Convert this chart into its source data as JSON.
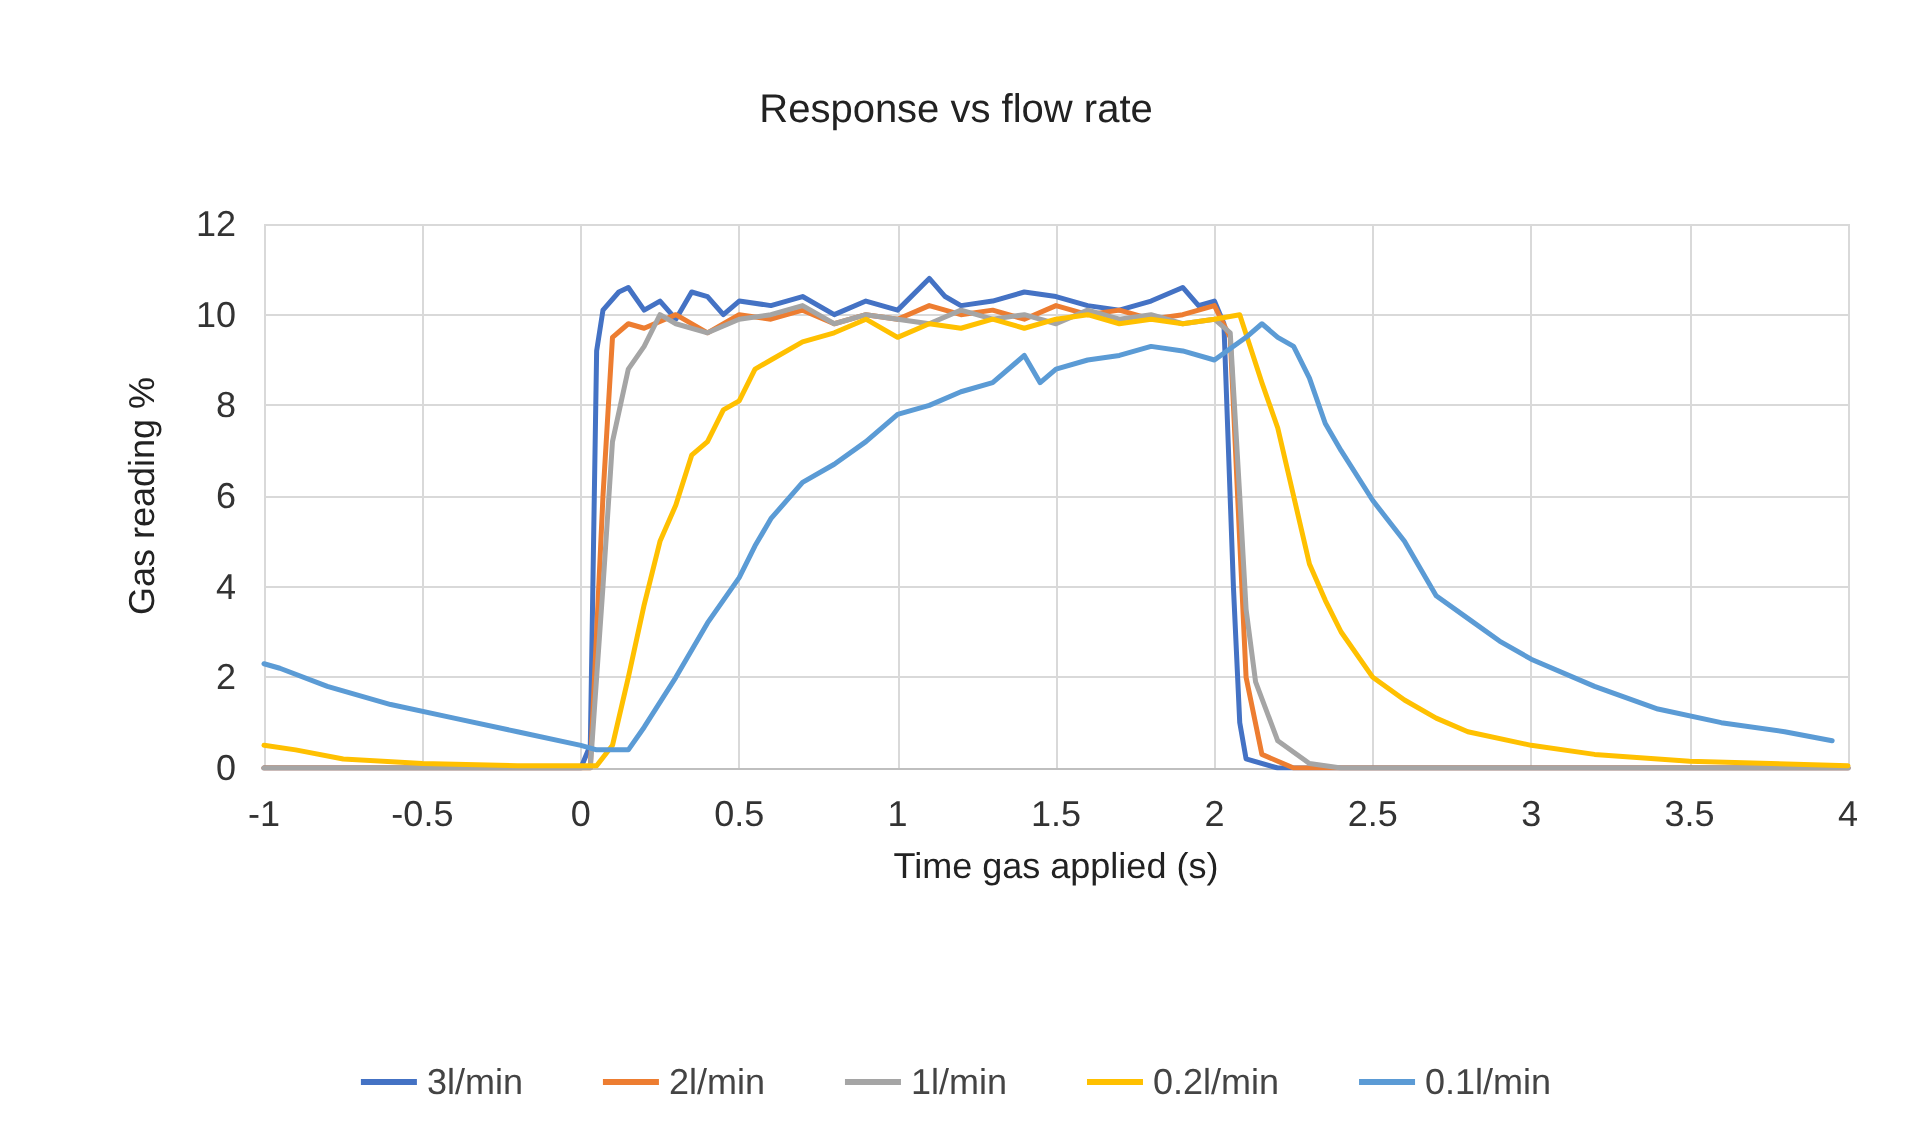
{
  "chart_data": {
    "type": "line",
    "title": "Response vs flow rate",
    "xlabel": "Time gas applied (s)",
    "ylabel": "Gas reading %",
    "xlim": [
      -1,
      4
    ],
    "xticks": [
      -1,
      -0.5,
      0,
      0.5,
      1,
      1.5,
      2,
      2.5,
      3,
      3.5,
      4
    ],
    "ylim": [
      0,
      12
    ],
    "yticks": [
      0,
      2,
      4,
      6,
      8,
      10,
      12
    ],
    "grid": true,
    "legend": "bottom",
    "marker": "none",
    "line_style": "solid",
    "series": [
      {
        "name": "3l/min",
        "color": "#4472c4",
        "x": [
          -1,
          -0.5,
          0,
          0.03,
          0.05,
          0.07,
          0.12,
          0.15,
          0.2,
          0.25,
          0.3,
          0.35,
          0.4,
          0.45,
          0.5,
          0.6,
          0.7,
          0.8,
          0.9,
          1.0,
          1.1,
          1.15,
          1.2,
          1.3,
          1.4,
          1.5,
          1.6,
          1.7,
          1.8,
          1.9,
          1.95,
          2.0,
          2.03,
          2.06,
          2.08,
          2.1,
          2.2,
          3,
          4
        ],
        "values": [
          0,
          0,
          0,
          0.5,
          9.2,
          10.1,
          10.5,
          10.6,
          10.1,
          10.3,
          9.9,
          10.5,
          10.4,
          10.0,
          10.3,
          10.2,
          10.4,
          10.0,
          10.3,
          10.1,
          10.8,
          10.4,
          10.2,
          10.3,
          10.5,
          10.4,
          10.2,
          10.1,
          10.3,
          10.6,
          10.2,
          10.3,
          9.8,
          4,
          1,
          0.2,
          0,
          0,
          0
        ]
      },
      {
        "name": "2l/min",
        "color": "#ed7d31",
        "x": [
          -1,
          0,
          0.03,
          0.07,
          0.1,
          0.15,
          0.2,
          0.3,
          0.4,
          0.5,
          0.6,
          0.7,
          0.8,
          0.9,
          1.0,
          1.1,
          1.2,
          1.3,
          1.4,
          1.5,
          1.6,
          1.7,
          1.8,
          1.9,
          2.0,
          2.05,
          2.08,
          2.1,
          2.15,
          2.25,
          3,
          4
        ],
        "values": [
          0,
          0,
          0,
          6,
          9.5,
          9.8,
          9.7,
          10.0,
          9.6,
          10.0,
          9.9,
          10.1,
          9.8,
          10.0,
          9.9,
          10.2,
          10.0,
          10.1,
          9.9,
          10.2,
          10.0,
          10.1,
          9.9,
          10.0,
          10.2,
          9.5,
          5,
          2,
          0.3,
          0,
          0,
          0
        ]
      },
      {
        "name": "1l/min",
        "color": "#a5a5a5",
        "x": [
          -1,
          0,
          0.03,
          0.07,
          0.1,
          0.15,
          0.2,
          0.25,
          0.3,
          0.4,
          0.5,
          0.6,
          0.7,
          0.8,
          0.9,
          1.0,
          1.1,
          1.2,
          1.3,
          1.4,
          1.5,
          1.6,
          1.7,
          1.8,
          1.9,
          2.0,
          2.05,
          2.08,
          2.1,
          2.13,
          2.2,
          2.3,
          2.4,
          3,
          4
        ],
        "values": [
          0,
          0,
          0,
          4,
          7.2,
          8.8,
          9.3,
          10.0,
          9.8,
          9.6,
          9.9,
          10.0,
          10.2,
          9.8,
          10.0,
          9.9,
          9.8,
          10.1,
          9.9,
          10.0,
          9.8,
          10.1,
          9.9,
          10.0,
          9.8,
          9.9,
          9.6,
          6,
          3.5,
          1.9,
          0.6,
          0.1,
          0,
          0,
          0
        ]
      },
      {
        "name": "0.2l/min",
        "color": "#ffc000",
        "x": [
          -1,
          -0.9,
          -0.75,
          -0.5,
          -0.2,
          0.05,
          0.1,
          0.15,
          0.2,
          0.25,
          0.3,
          0.35,
          0.4,
          0.45,
          0.5,
          0.55,
          0.6,
          0.7,
          0.8,
          0.9,
          1.0,
          1.1,
          1.2,
          1.3,
          1.4,
          1.5,
          1.6,
          1.7,
          1.8,
          1.9,
          2.0,
          2.08,
          2.15,
          2.2,
          2.25,
          2.3,
          2.35,
          2.4,
          2.5,
          2.6,
          2.7,
          2.8,
          3.0,
          3.2,
          3.5,
          4
        ],
        "values": [
          0.5,
          0.4,
          0.2,
          0.1,
          0.05,
          0.05,
          0.5,
          2,
          3.6,
          5,
          5.8,
          6.9,
          7.2,
          7.9,
          8.1,
          8.8,
          9.0,
          9.4,
          9.6,
          9.9,
          9.5,
          9.8,
          9.7,
          9.9,
          9.7,
          9.9,
          10.0,
          9.8,
          9.9,
          9.8,
          9.9,
          10.0,
          8.5,
          7.5,
          6.0,
          4.5,
          3.7,
          3.0,
          2.0,
          1.5,
          1.1,
          0.8,
          0.5,
          0.3,
          0.15,
          0.05
        ]
      },
      {
        "name": "0.1l/min",
        "color": "#5b9bd5",
        "x": [
          -1,
          -0.95,
          -0.8,
          -0.6,
          -0.4,
          -0.2,
          0,
          0.05,
          0.15,
          0.2,
          0.3,
          0.4,
          0.5,
          0.55,
          0.6,
          0.7,
          0.8,
          0.9,
          1.0,
          1.1,
          1.2,
          1.3,
          1.4,
          1.45,
          1.5,
          1.6,
          1.7,
          1.8,
          1.9,
          2.0,
          2.1,
          2.15,
          2.2,
          2.25,
          2.3,
          2.35,
          2.4,
          2.5,
          2.6,
          2.7,
          2.8,
          2.9,
          3.0,
          3.2,
          3.4,
          3.6,
          3.8,
          3.95
        ],
        "values": [
          2.3,
          2.2,
          1.8,
          1.4,
          1.1,
          0.8,
          0.5,
          0.4,
          0.4,
          0.9,
          2.0,
          3.2,
          4.2,
          4.9,
          5.5,
          6.3,
          6.7,
          7.2,
          7.8,
          8.0,
          8.3,
          8.5,
          9.1,
          8.5,
          8.8,
          9.0,
          9.1,
          9.3,
          9.2,
          9.0,
          9.5,
          9.8,
          9.5,
          9.3,
          8.6,
          7.6,
          7.0,
          5.9,
          5.0,
          3.8,
          3.3,
          2.8,
          2.4,
          1.8,
          1.3,
          1.0,
          0.8,
          0.6
        ]
      }
    ]
  }
}
